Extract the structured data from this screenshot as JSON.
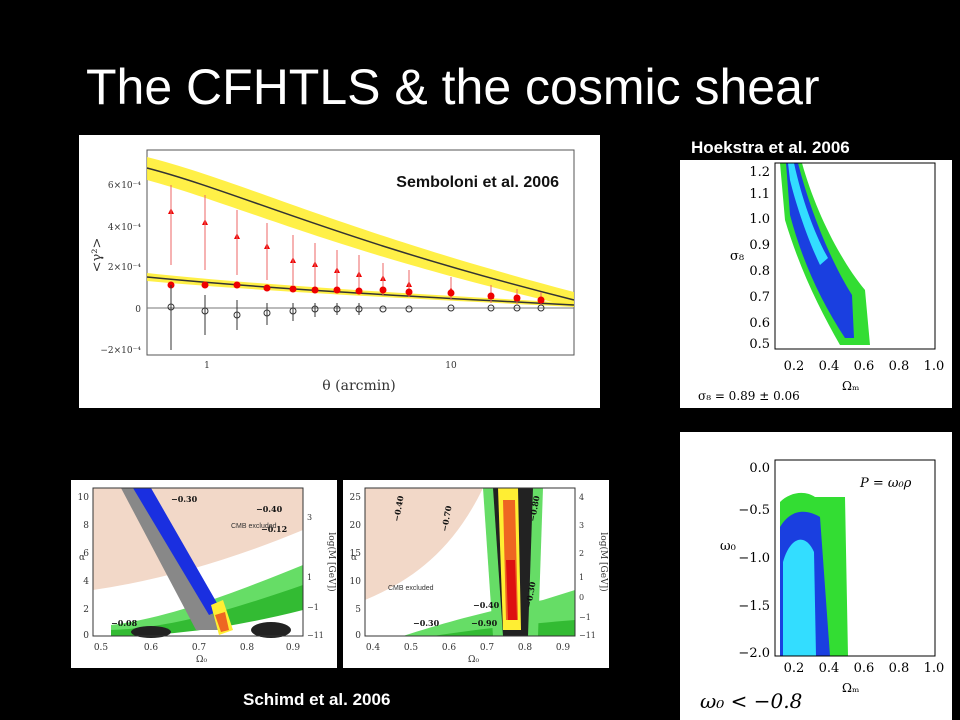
{
  "slide": {
    "title": "The CFHTLS  & the cosmic shear"
  },
  "shear_panel": {
    "credit": "Semboloni et al. 2006",
    "ylabel": "<γ²>",
    "xlabel": "θ (arcmin)",
    "yticks": [
      "6×10⁻⁴",
      "4×10⁻⁴",
      "2×10⁻⁴",
      "0",
      "−2×10⁻⁴"
    ],
    "xticks": [
      "1",
      "10"
    ]
  },
  "hoekstra_top": {
    "credit": "Hoekstra et al. 2006",
    "ylabel": "σ₈",
    "xlabel": "Ωₘ",
    "yticks": [
      "1.2",
      "1.1",
      "1.0",
      "0.9",
      "0.8",
      "0.7",
      "0.6",
      "0.5"
    ],
    "xticks": [
      "0.2",
      "0.4",
      "0.6",
      "0.8",
      "1.0"
    ],
    "annotation": "σ₈ = 0.89 ± 0.06",
    "colors": {
      "outer": "#33dd33",
      "middle": "#1a3fe0",
      "inner": "#33ddff"
    }
  },
  "hoekstra_bottom": {
    "ylabel": "ω₀",
    "xlabel": "Ωₘ",
    "yticks": [
      "0.0",
      "−0.5",
      "−1.0",
      "−1.5",
      "−2.0"
    ],
    "xticks": [
      "0.2",
      "0.4",
      "0.6",
      "0.8",
      "1.0"
    ],
    "annotation": "P = ω₀ρ",
    "bottom_text": "ω₀ < −0.8"
  },
  "schimd_left": {
    "ylabel": "α",
    "xlabel": "Ω₀",
    "right_label": "log(M [GeV])",
    "yticks": [
      "10",
      "8",
      "6",
      "4",
      "2",
      "0"
    ],
    "xticks": [
      "0.5",
      "0.6",
      "0.7",
      "0.8",
      "0.9"
    ],
    "rticks": [
      "3",
      "1",
      "−1",
      "−11"
    ],
    "contour_labels": [
      "−0.40",
      "−0.12",
      "−0.08",
      "−0.30"
    ],
    "region_label": "CMB excluded"
  },
  "schimd_right": {
    "ylabel": "α",
    "xlabel": "Ω₀",
    "right_label": "log(M [GeV])",
    "yticks": [
      "25",
      "20",
      "15",
      "10",
      "5",
      "0"
    ],
    "xticks": [
      "0.4",
      "0.5",
      "0.6",
      "0.7",
      "0.8",
      "0.9"
    ],
    "rticks": [
      "4",
      "3",
      "2",
      "1",
      "0",
      "−1",
      "−11"
    ],
    "contour_labels": [
      "−0.40",
      "−0.70",
      "−0.80",
      "−0.40",
      "−0.30",
      "−0.90",
      "−0.30"
    ],
    "region_label": "CMB excluded",
    "credit": "Schimd et al. 2006"
  }
}
